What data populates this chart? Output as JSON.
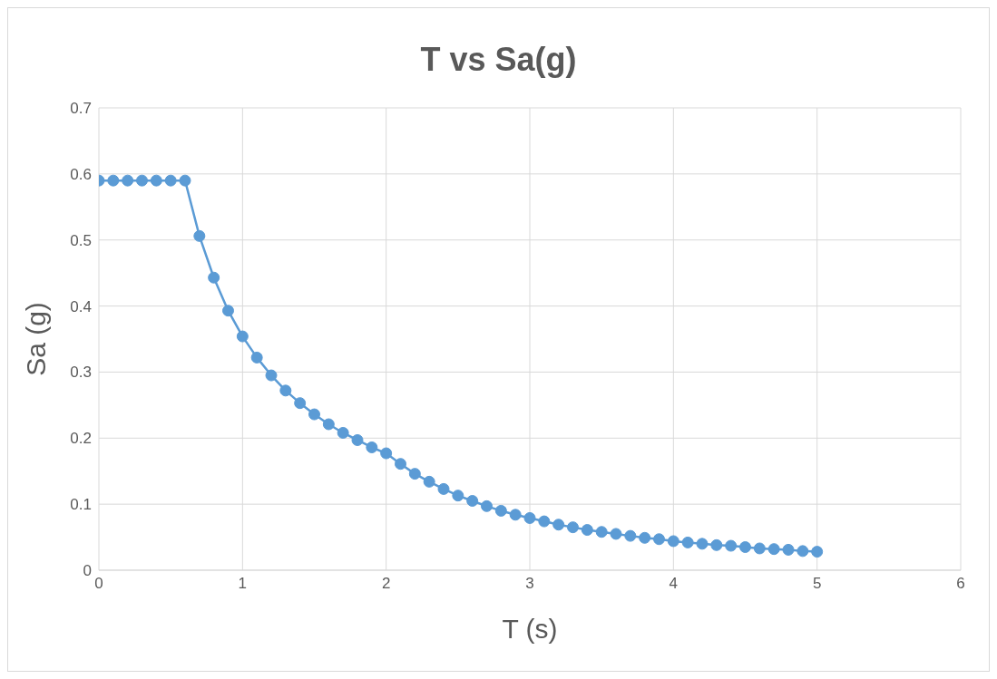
{
  "chart_data": {
    "type": "line",
    "title": "T vs Sa(g)",
    "xlabel": "T (s)",
    "ylabel": "Sa (g)",
    "x": [
      0,
      0.1,
      0.2,
      0.3,
      0.4,
      0.5,
      0.6,
      0.7,
      0.8,
      0.9,
      1.0,
      1.1,
      1.2,
      1.3,
      1.4,
      1.5,
      1.6,
      1.7,
      1.8,
      1.9,
      2.0,
      2.1,
      2.2,
      2.3,
      2.4,
      2.5,
      2.6,
      2.7,
      2.8,
      2.9,
      3.0,
      3.1,
      3.2,
      3.3,
      3.4,
      3.5,
      3.6,
      3.7,
      3.8,
      3.9,
      4.0,
      4.1,
      4.2,
      4.3,
      4.4,
      4.5,
      4.6,
      4.7,
      4.8,
      4.9,
      5.0
    ],
    "series": [
      {
        "color": "#5b9bd5",
        "values": [
          0.59,
          0.59,
          0.59,
          0.59,
          0.59,
          0.59,
          0.59,
          0.506,
          0.443,
          0.393,
          0.354,
          0.322,
          0.295,
          0.272,
          0.253,
          0.236,
          0.221,
          0.208,
          0.197,
          0.186,
          0.177,
          0.161,
          0.146,
          0.134,
          0.123,
          0.113,
          0.105,
          0.097,
          0.09,
          0.084,
          0.079,
          0.074,
          0.069,
          0.065,
          0.061,
          0.058,
          0.055,
          0.052,
          0.049,
          0.047,
          0.044,
          0.042,
          0.04,
          0.038,
          0.037,
          0.035,
          0.033,
          0.032,
          0.031,
          0.029,
          0.028
        ]
      }
    ],
    "xlim": [
      0,
      6
    ],
    "xticks": [
      0,
      1,
      2,
      3,
      4,
      5,
      6
    ],
    "ylim": [
      0,
      0.7
    ],
    "yticks": [
      0,
      0.1,
      0.2,
      0.3,
      0.4,
      0.5,
      0.6,
      0.7
    ],
    "grid": true,
    "marker": "circle",
    "line_style": "solid"
  }
}
